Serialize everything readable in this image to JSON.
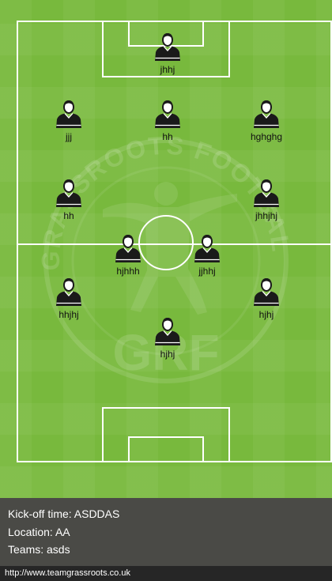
{
  "pitch": {
    "watermark_letters": "GRASSROOTS FOOTBALL",
    "watermark_monogram": "GRF",
    "players": [
      {
        "name": "jhhj",
        "role": "goalkeeper"
      },
      {
        "name": "jjj",
        "role": "defender"
      },
      {
        "name": "hh",
        "role": "defender"
      },
      {
        "name": "hghghg",
        "role": "defender"
      },
      {
        "name": "hh",
        "role": "midfielder"
      },
      {
        "name": "jhhjhj",
        "role": "midfielder"
      },
      {
        "name": "hjhhh",
        "role": "midfielder"
      },
      {
        "name": "jjhhj",
        "role": "midfielder"
      },
      {
        "name": "hhjhj",
        "role": "forward"
      },
      {
        "name": "hjhj",
        "role": "forward"
      },
      {
        "name": "hjhj",
        "role": "forward"
      }
    ]
  },
  "info": {
    "kickoff": "Kick-off time: ASDDAS",
    "location": "Location: AA",
    "teams": "Teams: asds"
  },
  "footer": {
    "url": "http://www.teamgrassroots.co.uk"
  },
  "colors": {
    "pitch_green": "#78b93d",
    "line_white": "#ffffff",
    "info_bar": "#4a4a46",
    "footer_bar": "#262626",
    "shirt": "#1a1a1a"
  }
}
